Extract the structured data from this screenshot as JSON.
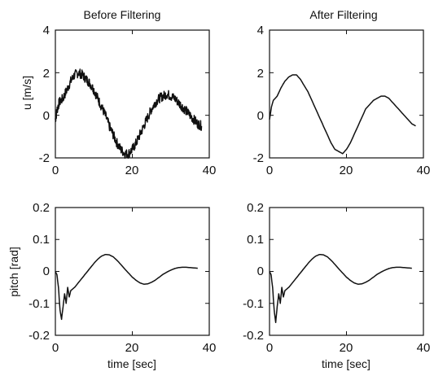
{
  "chart_data": [
    {
      "type": "line",
      "title": "Before Filtering",
      "xlabel": "",
      "ylabel": "u [m/s]",
      "xlim": [
        0,
        40
      ],
      "ylim": [
        -2,
        4
      ],
      "xticks": [
        "0",
        "20",
        "40"
      ],
      "yticks": [
        "-2",
        "0",
        "2",
        "4"
      ],
      "grid": false,
      "noisy": true,
      "series": [
        {
          "x": [
            0,
            0.5,
            1,
            2,
            3,
            4,
            5,
            6,
            7,
            8,
            9,
            10,
            11,
            12,
            13,
            14,
            15,
            16,
            17,
            18,
            19,
            20,
            21,
            22,
            23,
            24,
            25,
            26,
            27,
            28,
            29,
            30,
            31,
            32,
            33,
            34,
            35,
            36,
            37,
            38
          ],
          "y": [
            -0.2,
            0.3,
            0.6,
            0.8,
            1.2,
            1.6,
            1.9,
            2.0,
            1.9,
            1.7,
            1.5,
            1.2,
            0.8,
            0.4,
            0.0,
            -0.5,
            -0.9,
            -1.3,
            -1.6,
            -1.8,
            -1.8,
            -1.6,
            -1.3,
            -0.9,
            -0.5,
            -0.1,
            0.3,
            0.6,
            0.8,
            0.9,
            1.0,
            0.9,
            0.8,
            0.6,
            0.4,
            0.2,
            0.0,
            -0.2,
            -0.4,
            -0.5
          ]
        }
      ]
    },
    {
      "type": "line",
      "title": "After Filtering",
      "xlabel": "",
      "ylabel": "",
      "xlim": [
        0,
        40
      ],
      "ylim": [
        -2,
        4
      ],
      "xticks": [
        "0",
        "20",
        "40"
      ],
      "yticks": [
        "-2",
        "0",
        "2",
        "4"
      ],
      "grid": false,
      "noisy": false,
      "series": [
        {
          "x": [
            0,
            0.5,
            1,
            2,
            3,
            4,
            5,
            6,
            7,
            8,
            9,
            10,
            11,
            12,
            13,
            14,
            15,
            16,
            17,
            18,
            19,
            20,
            21,
            22,
            23,
            24,
            25,
            26,
            27,
            28,
            29,
            30,
            31,
            32,
            33,
            34,
            35,
            36,
            37,
            38
          ],
          "y": [
            -0.2,
            0.4,
            0.7,
            0.9,
            1.3,
            1.6,
            1.8,
            1.9,
            1.9,
            1.7,
            1.4,
            1.1,
            0.7,
            0.3,
            -0.1,
            -0.5,
            -0.9,
            -1.3,
            -1.6,
            -1.7,
            -1.8,
            -1.6,
            -1.3,
            -0.9,
            -0.5,
            -0.1,
            0.3,
            0.5,
            0.7,
            0.8,
            0.9,
            0.9,
            0.8,
            0.6,
            0.4,
            0.2,
            0.0,
            -0.2,
            -0.4,
            -0.5
          ]
        }
      ]
    },
    {
      "type": "line",
      "title": "",
      "xlabel": "time [sec]",
      "ylabel": "pitch [rad]",
      "xlim": [
        0,
        40
      ],
      "ylim": [
        -0.2,
        0.2
      ],
      "xticks": [
        "0",
        "20",
        "40"
      ],
      "yticks": [
        "-0.2",
        "-0.1",
        "0",
        "0.1",
        "0.2"
      ],
      "grid": false,
      "noisy": false,
      "series": [
        {
          "x": [
            0,
            0.4,
            0.8,
            1.2,
            1.6,
            2.0,
            2.4,
            2.8,
            3.2,
            3.6,
            4,
            5,
            6,
            7,
            8,
            9,
            10,
            11,
            12,
            13,
            14,
            15,
            16,
            17,
            18,
            19,
            20,
            21,
            22,
            23,
            24,
            25,
            26,
            27,
            28,
            29,
            30,
            31,
            32,
            33,
            34,
            35,
            36,
            37
          ],
          "y": [
            0.0,
            -0.01,
            -0.05,
            -0.12,
            -0.15,
            -0.11,
            -0.07,
            -0.1,
            -0.05,
            -0.08,
            -0.06,
            -0.05,
            -0.035,
            -0.02,
            -0.005,
            0.01,
            0.025,
            0.038,
            0.048,
            0.053,
            0.052,
            0.046,
            0.035,
            0.022,
            0.008,
            -0.005,
            -0.018,
            -0.028,
            -0.036,
            -0.04,
            -0.039,
            -0.034,
            -0.027,
            -0.018,
            -0.009,
            -0.002,
            0.004,
            0.009,
            0.012,
            0.013,
            0.013,
            0.012,
            0.011,
            0.01
          ]
        }
      ]
    },
    {
      "type": "line",
      "title": "",
      "xlabel": "time [sec]",
      "ylabel": "",
      "xlim": [
        0,
        40
      ],
      "ylim": [
        -0.2,
        0.2
      ],
      "xticks": [
        "0",
        "20",
        "40"
      ],
      "yticks": [
        "-0.2",
        "-0.1",
        "0",
        "0.1",
        "0.2"
      ],
      "grid": false,
      "noisy": false,
      "series": [
        {
          "x": [
            0,
            0.4,
            0.8,
            1.2,
            1.6,
            2.0,
            2.4,
            2.8,
            3.2,
            3.6,
            4,
            5,
            6,
            7,
            8,
            9,
            10,
            11,
            12,
            13,
            14,
            15,
            16,
            17,
            18,
            19,
            20,
            21,
            22,
            23,
            24,
            25,
            26,
            27,
            28,
            29,
            30,
            31,
            32,
            33,
            34,
            35,
            36,
            37
          ],
          "y": [
            0.0,
            -0.01,
            -0.05,
            -0.12,
            -0.16,
            -0.11,
            -0.07,
            -0.1,
            -0.05,
            -0.08,
            -0.06,
            -0.05,
            -0.035,
            -0.02,
            -0.005,
            0.01,
            0.025,
            0.038,
            0.048,
            0.053,
            0.052,
            0.046,
            0.035,
            0.022,
            0.008,
            -0.005,
            -0.018,
            -0.028,
            -0.036,
            -0.04,
            -0.039,
            -0.034,
            -0.027,
            -0.018,
            -0.009,
            -0.002,
            0.004,
            0.009,
            0.012,
            0.013,
            0.013,
            0.012,
            0.011,
            0.01
          ]
        }
      ]
    }
  ]
}
